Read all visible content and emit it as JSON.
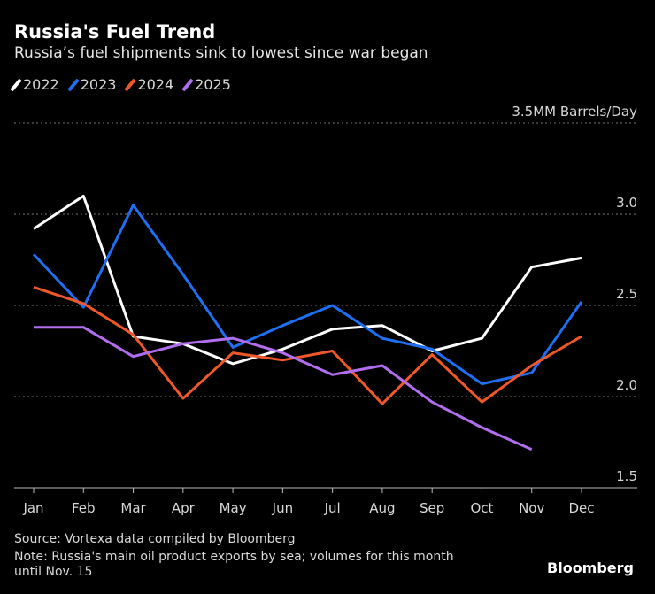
{
  "chart_data": {
    "type": "line",
    "title": "Russia's Fuel Trend",
    "subtitle": "Russia’s fuel shipments sink to lowest since war began",
    "categories": [
      "Jan",
      "Feb",
      "Mar",
      "Apr",
      "May",
      "Jun",
      "Jul",
      "Aug",
      "Sep",
      "Oct",
      "Nov",
      "Dec"
    ],
    "ylim": [
      1.5,
      3.5
    ],
    "yticks": [
      1.5,
      2.0,
      2.5,
      3.0,
      3.5
    ],
    "ytick_labels": [
      "1.5",
      "2.0",
      "2.5",
      "3.0",
      "3.5MM Barrels/Day"
    ],
    "grid": true,
    "legend_placement": "top-left",
    "series": [
      {
        "name": "2022",
        "color": "#ffffff",
        "values": [
          2.92,
          3.1,
          2.33,
          2.29,
          2.18,
          2.26,
          2.37,
          2.39,
          2.25,
          2.32,
          2.71,
          2.76
        ]
      },
      {
        "name": "2023",
        "color": "#1f6ff2",
        "values": [
          2.78,
          2.49,
          3.05,
          2.67,
          2.27,
          2.39,
          2.5,
          2.32,
          2.26,
          2.07,
          2.13,
          2.52
        ]
      },
      {
        "name": "2024",
        "color": "#f0582a",
        "values": [
          2.6,
          2.51,
          2.34,
          1.99,
          2.24,
          2.2,
          2.25,
          1.96,
          2.23,
          1.97,
          2.17,
          2.33
        ]
      },
      {
        "name": "2025",
        "color": "#b36ef0",
        "values": [
          2.38,
          2.38,
          2.22,
          2.29,
          2.32,
          2.24,
          2.12,
          2.17,
          1.97,
          1.83,
          1.71,
          null
        ]
      }
    ]
  },
  "footer": {
    "source": "Source: Vortexa data compiled by Bloomberg",
    "note1": "Note: Russia's main oil product exports by sea; volumes for this month",
    "note2": "until Nov. 15",
    "brand": "Bloomberg"
  }
}
